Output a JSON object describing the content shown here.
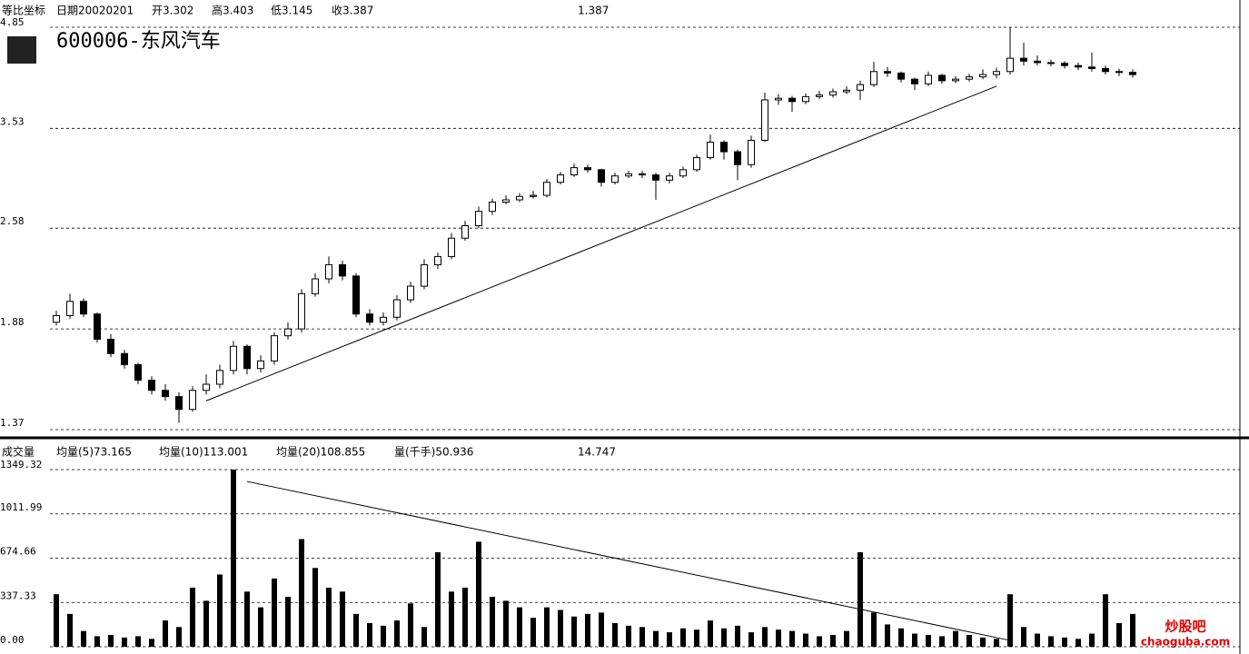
{
  "chart_data": [
    {
      "type": "candlestick",
      "title": "600006-东风汽车",
      "header": [
        "等比坐标",
        "日期20020201",
        "开3.302",
        "高3.403",
        "低3.145",
        "收3.387",
        "1.387"
      ],
      "log_scale": true,
      "ylim": [
        1.37,
        4.85
      ],
      "yticks": [
        4.85,
        3.53,
        2.58,
        1.88,
        1.37
      ],
      "grid": true,
      "up_color": "#ffffff",
      "down_color": "#000000",
      "open": [
        1.92,
        1.96,
        2.05,
        1.97,
        1.82,
        1.74,
        1.68,
        1.6,
        1.55,
        1.52,
        1.46,
        1.55,
        1.58,
        1.65,
        1.78,
        1.66,
        1.7,
        1.84,
        1.88,
        2.1,
        2.2,
        2.3,
        2.22,
        1.97,
        1.92,
        1.95,
        2.06,
        2.15,
        2.3,
        2.36,
        2.5,
        2.6,
        2.72,
        2.8,
        2.82,
        2.85,
        2.86,
        2.98,
        3.05,
        3.12,
        3.1,
        2.98,
        3.04,
        3.06,
        3.05,
        3.0,
        3.04,
        3.1,
        3.22,
        3.38,
        3.28,
        3.15,
        3.4,
        3.86,
        3.88,
        3.84,
        3.9,
        3.92,
        3.96,
        3.98,
        4.05,
        4.22,
        4.2,
        4.12,
        4.06,
        4.17,
        4.1,
        4.12,
        4.15,
        4.18,
        4.22,
        4.4,
        4.36,
        4.34,
        4.33,
        4.3,
        4.28,
        4.26,
        4.22,
        4.21
      ],
      "close": [
        1.96,
        2.05,
        1.97,
        1.82,
        1.74,
        1.68,
        1.6,
        1.55,
        1.52,
        1.46,
        1.55,
        1.58,
        1.65,
        1.78,
        1.66,
        1.7,
        1.84,
        1.88,
        2.1,
        2.2,
        2.3,
        2.22,
        1.97,
        1.92,
        1.95,
        2.06,
        2.15,
        2.3,
        2.36,
        2.5,
        2.6,
        2.72,
        2.8,
        2.82,
        2.85,
        2.86,
        2.98,
        3.05,
        3.12,
        3.1,
        2.98,
        3.04,
        3.06,
        3.05,
        3.0,
        3.04,
        3.1,
        3.22,
        3.38,
        3.28,
        3.15,
        3.4,
        3.86,
        3.88,
        3.84,
        3.9,
        3.92,
        3.96,
        3.98,
        4.05,
        4.22,
        4.2,
        4.12,
        4.06,
        4.17,
        4.1,
        4.12,
        4.15,
        4.18,
        4.22,
        4.4,
        4.36,
        4.34,
        4.33,
        4.3,
        4.28,
        4.26,
        4.22,
        4.21,
        4.18
      ],
      "high": [
        1.99,
        2.1,
        2.07,
        1.98,
        1.85,
        1.76,
        1.69,
        1.62,
        1.58,
        1.54,
        1.57,
        1.63,
        1.68,
        1.81,
        1.79,
        1.73,
        1.86,
        1.92,
        2.13,
        2.24,
        2.36,
        2.33,
        2.24,
        2.0,
        1.98,
        2.09,
        2.18,
        2.34,
        2.39,
        2.54,
        2.64,
        2.76,
        2.83,
        2.86,
        2.88,
        2.9,
        3.01,
        3.08,
        3.16,
        3.15,
        3.11,
        3.07,
        3.09,
        3.09,
        3.07,
        3.07,
        3.13,
        3.25,
        3.46,
        3.4,
        3.3,
        3.45,
        3.95,
        3.93,
        3.91,
        3.94,
        3.97,
        4.0,
        4.03,
        4.1,
        4.35,
        4.28,
        4.22,
        4.14,
        4.22,
        4.19,
        4.16,
        4.19,
        4.25,
        4.27,
        4.85,
        4.62,
        4.44,
        4.38,
        4.36,
        4.34,
        4.48,
        4.3,
        4.26,
        4.25
      ],
      "low": [
        1.9,
        1.94,
        1.95,
        1.8,
        1.72,
        1.66,
        1.58,
        1.53,
        1.5,
        1.4,
        1.45,
        1.53,
        1.56,
        1.63,
        1.63,
        1.64,
        1.68,
        1.82,
        1.86,
        2.08,
        2.17,
        2.19,
        1.95,
        1.9,
        1.9,
        1.93,
        2.04,
        2.13,
        2.27,
        2.34,
        2.48,
        2.58,
        2.69,
        2.78,
        2.8,
        2.83,
        2.84,
        2.96,
        3.03,
        3.07,
        2.94,
        2.96,
        3.02,
        3.02,
        2.82,
        2.97,
        3.02,
        3.08,
        3.2,
        3.2,
        3.0,
        3.12,
        3.38,
        3.8,
        3.72,
        3.81,
        3.87,
        3.89,
        3.93,
        3.86,
        4.02,
        4.15,
        4.08,
        3.98,
        4.03,
        4.06,
        4.07,
        4.09,
        4.12,
        4.13,
        4.18,
        4.3,
        4.3,
        4.29,
        4.26,
        4.24,
        4.22,
        4.18,
        4.16,
        4.14
      ],
      "trendline": {
        "x": [
          11,
          69
        ],
        "y": [
          1.5,
          4.03
        ]
      }
    },
    {
      "type": "bar",
      "header": [
        "成交量",
        "均量(5)73.165",
        "均量(10)113.001",
        "均量(20)108.855",
        "量(千手)50.936",
        "14.747"
      ],
      "ylim": [
        0,
        1349.32
      ],
      "yticks": [
        1349.32,
        1011.99,
        674.66,
        337.33,
        {
          "value": 0,
          "label": "0.00"
        }
      ],
      "grid": true,
      "color": "#000000",
      "values": [
        400,
        250,
        120,
        80,
        90,
        70,
        80,
        60,
        200,
        150,
        450,
        350,
        550,
        1349,
        420,
        300,
        520,
        380,
        820,
        600,
        450,
        420,
        250,
        180,
        160,
        200,
        330,
        150,
        720,
        420,
        450,
        800,
        380,
        350,
        300,
        220,
        300,
        280,
        230,
        250,
        260,
        180,
        160,
        150,
        120,
        110,
        140,
        130,
        200,
        140,
        160,
        110,
        150,
        130,
        120,
        100,
        80,
        90,
        120,
        720,
        260,
        170,
        140,
        100,
        90,
        80,
        120,
        90,
        70,
        60,
        400,
        150,
        100,
        80,
        70,
        60,
        100,
        400,
        180,
        250
      ],
      "trendline": {
        "x": [
          14,
          70
        ],
        "y": [
          1259,
          48
        ]
      }
    }
  ],
  "watermark": {
    "name": "炒股吧",
    "url": "chaoguba.com"
  }
}
